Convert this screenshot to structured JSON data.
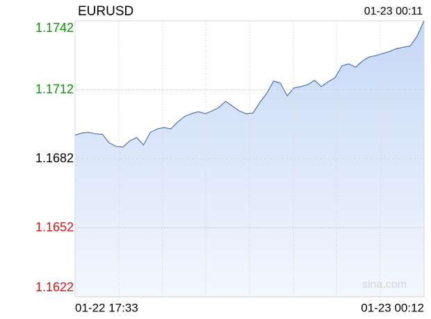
{
  "chart_data": {
    "type": "line",
    "title": "EURUSD",
    "time": "01-23 00:11",
    "x_start_label": "01-22 17:33",
    "x_end_label": "01-23 00:12",
    "watermark": "sina.com",
    "color": "#4a72b8",
    "grid": true,
    "ylim": [
      1.1622,
      1.1742
    ],
    "yticks": [
      1.1742,
      1.1712,
      1.1682,
      1.1652,
      1.1622
    ],
    "ytick_colors": [
      "#009900",
      "#009900",
      "#000000",
      "#dd1111",
      "#dd1111"
    ],
    "values": [
      1.16923,
      1.16932,
      1.16935,
      1.16929,
      1.16926,
      1.16889,
      1.16874,
      1.16871,
      1.16898,
      1.16913,
      1.1688,
      1.16935,
      1.1695,
      1.16956,
      1.1695,
      1.1698,
      1.17004,
      1.17016,
      1.17025,
      1.17016,
      1.17028,
      1.17043,
      1.1707,
      1.17049,
      1.17028,
      1.17016,
      1.17019,
      1.17065,
      1.17104,
      1.17158,
      1.17149,
      1.17094,
      1.17128,
      1.17134,
      1.17143,
      1.17161,
      1.17134,
      1.17155,
      1.17173,
      1.17224,
      1.17233,
      1.17218,
      1.17245,
      1.17263,
      1.17269,
      1.17278,
      1.17287,
      1.17299,
      1.17305,
      1.17311,
      1.17354,
      1.1742
    ]
  }
}
